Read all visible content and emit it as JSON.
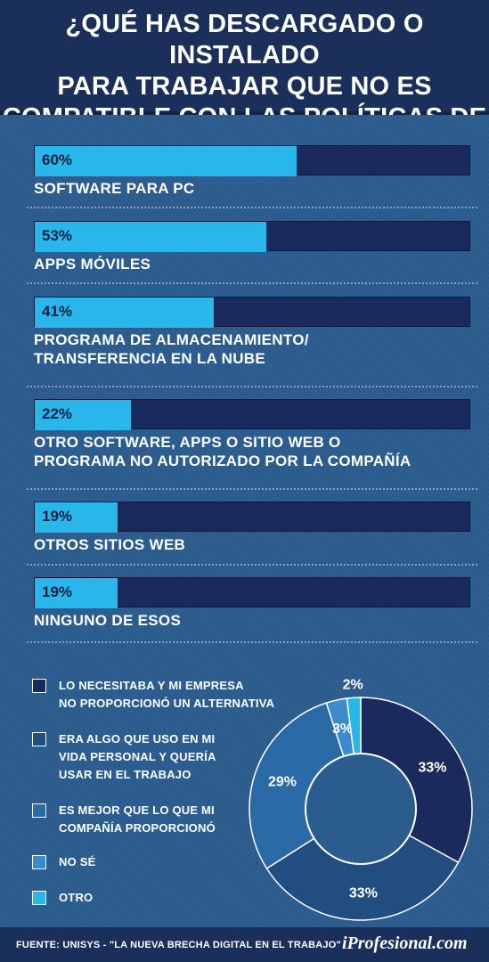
{
  "title_lines": [
    "¿QUÉ HAS DESCARGADO O INSTALADO",
    "PARA TRABAJAR QUE NO ES",
    "COMPATIBLE CON LAS POLÍTICAS DE TI?"
  ],
  "chart_data": [
    {
      "type": "bar",
      "orientation": "horizontal",
      "categories": [
        "SOFTWARE PARA PC",
        "APPS MÓVILES",
        "PROGRAMA DE ALMACENAMIENTO/ TRANSFERENCIA EN LA NUBE",
        "OTRO SOFTWARE, APPS O SITIO WEB O PROGRAMA NO AUTORIZADO POR LA COMPAÑÍA",
        "OTROS SITIOS WEB",
        "NINGUNO DE ESOS"
      ],
      "category_lines": [
        [
          "SOFTWARE PARA PC"
        ],
        [
          "APPS MÓVILES"
        ],
        [
          "PROGRAMA DE ALMACENAMIENTO/",
          "TRANSFERENCIA EN LA NUBE"
        ],
        [
          "OTRO SOFTWARE, APPS O SITIO WEB O",
          "PROGRAMA NO AUTORIZADO POR LA COMPAÑÍA"
        ],
        [
          "OTROS SITIOS WEB"
        ],
        [
          "NINGUNO DE ESOS"
        ]
      ],
      "values": [
        60,
        53,
        41,
        22,
        19,
        19
      ],
      "value_labels": [
        "60%",
        "53%",
        "41%",
        "22%",
        "19%",
        "19%"
      ],
      "xlim": [
        0,
        100
      ],
      "colors": {
        "fill": "#29b6ea",
        "track": "#1b2a5c"
      }
    },
    {
      "type": "pie",
      "donut": true,
      "categories": [
        "LO NECESITABA Y MI EMPRESA NO PROPORCIONÓ UN ALTERNATIVA",
        "ERA ALGO QUE USO EN MI VIDA PERSONAL Y QUERÍA USAR EN EL TRABAJO",
        "ES MEJOR QUE LO QUE MI COMPAÑÍA PROPORCIONÓ",
        "NO SÉ",
        "OTRO"
      ],
      "legend_lines": [
        [
          "LO NECESITABA Y MI EMPRESA",
          "NO PROPORCIONÓ UN ALTERNATIVA"
        ],
        [
          "ERA ALGO QUE USO EN MI",
          "VIDA PERSONAL Y QUERÍA",
          "USAR EN EL TRABAJO"
        ],
        [
          "ES MEJOR QUE LO QUE MI",
          "COMPAÑÍA PROPORCIONÓ"
        ],
        [
          "NO SÉ"
        ],
        [
          "OTRO"
        ]
      ],
      "values": [
        33,
        33,
        29,
        3,
        2
      ],
      "value_labels": [
        "33%",
        "33%",
        "29%",
        "3%",
        "2%"
      ],
      "colors": [
        "#1b2a5c",
        "#224d80",
        "#2a6aa6",
        "#3a8ccc",
        "#29b6ea"
      ],
      "legend_placement": "left"
    }
  ],
  "footer": {
    "source": "FUENTE: UNISYS - \"LA NUEVA BRECHA DIGITAL EN EL TRABAJO\"",
    "brand": "iProfesional.com"
  }
}
